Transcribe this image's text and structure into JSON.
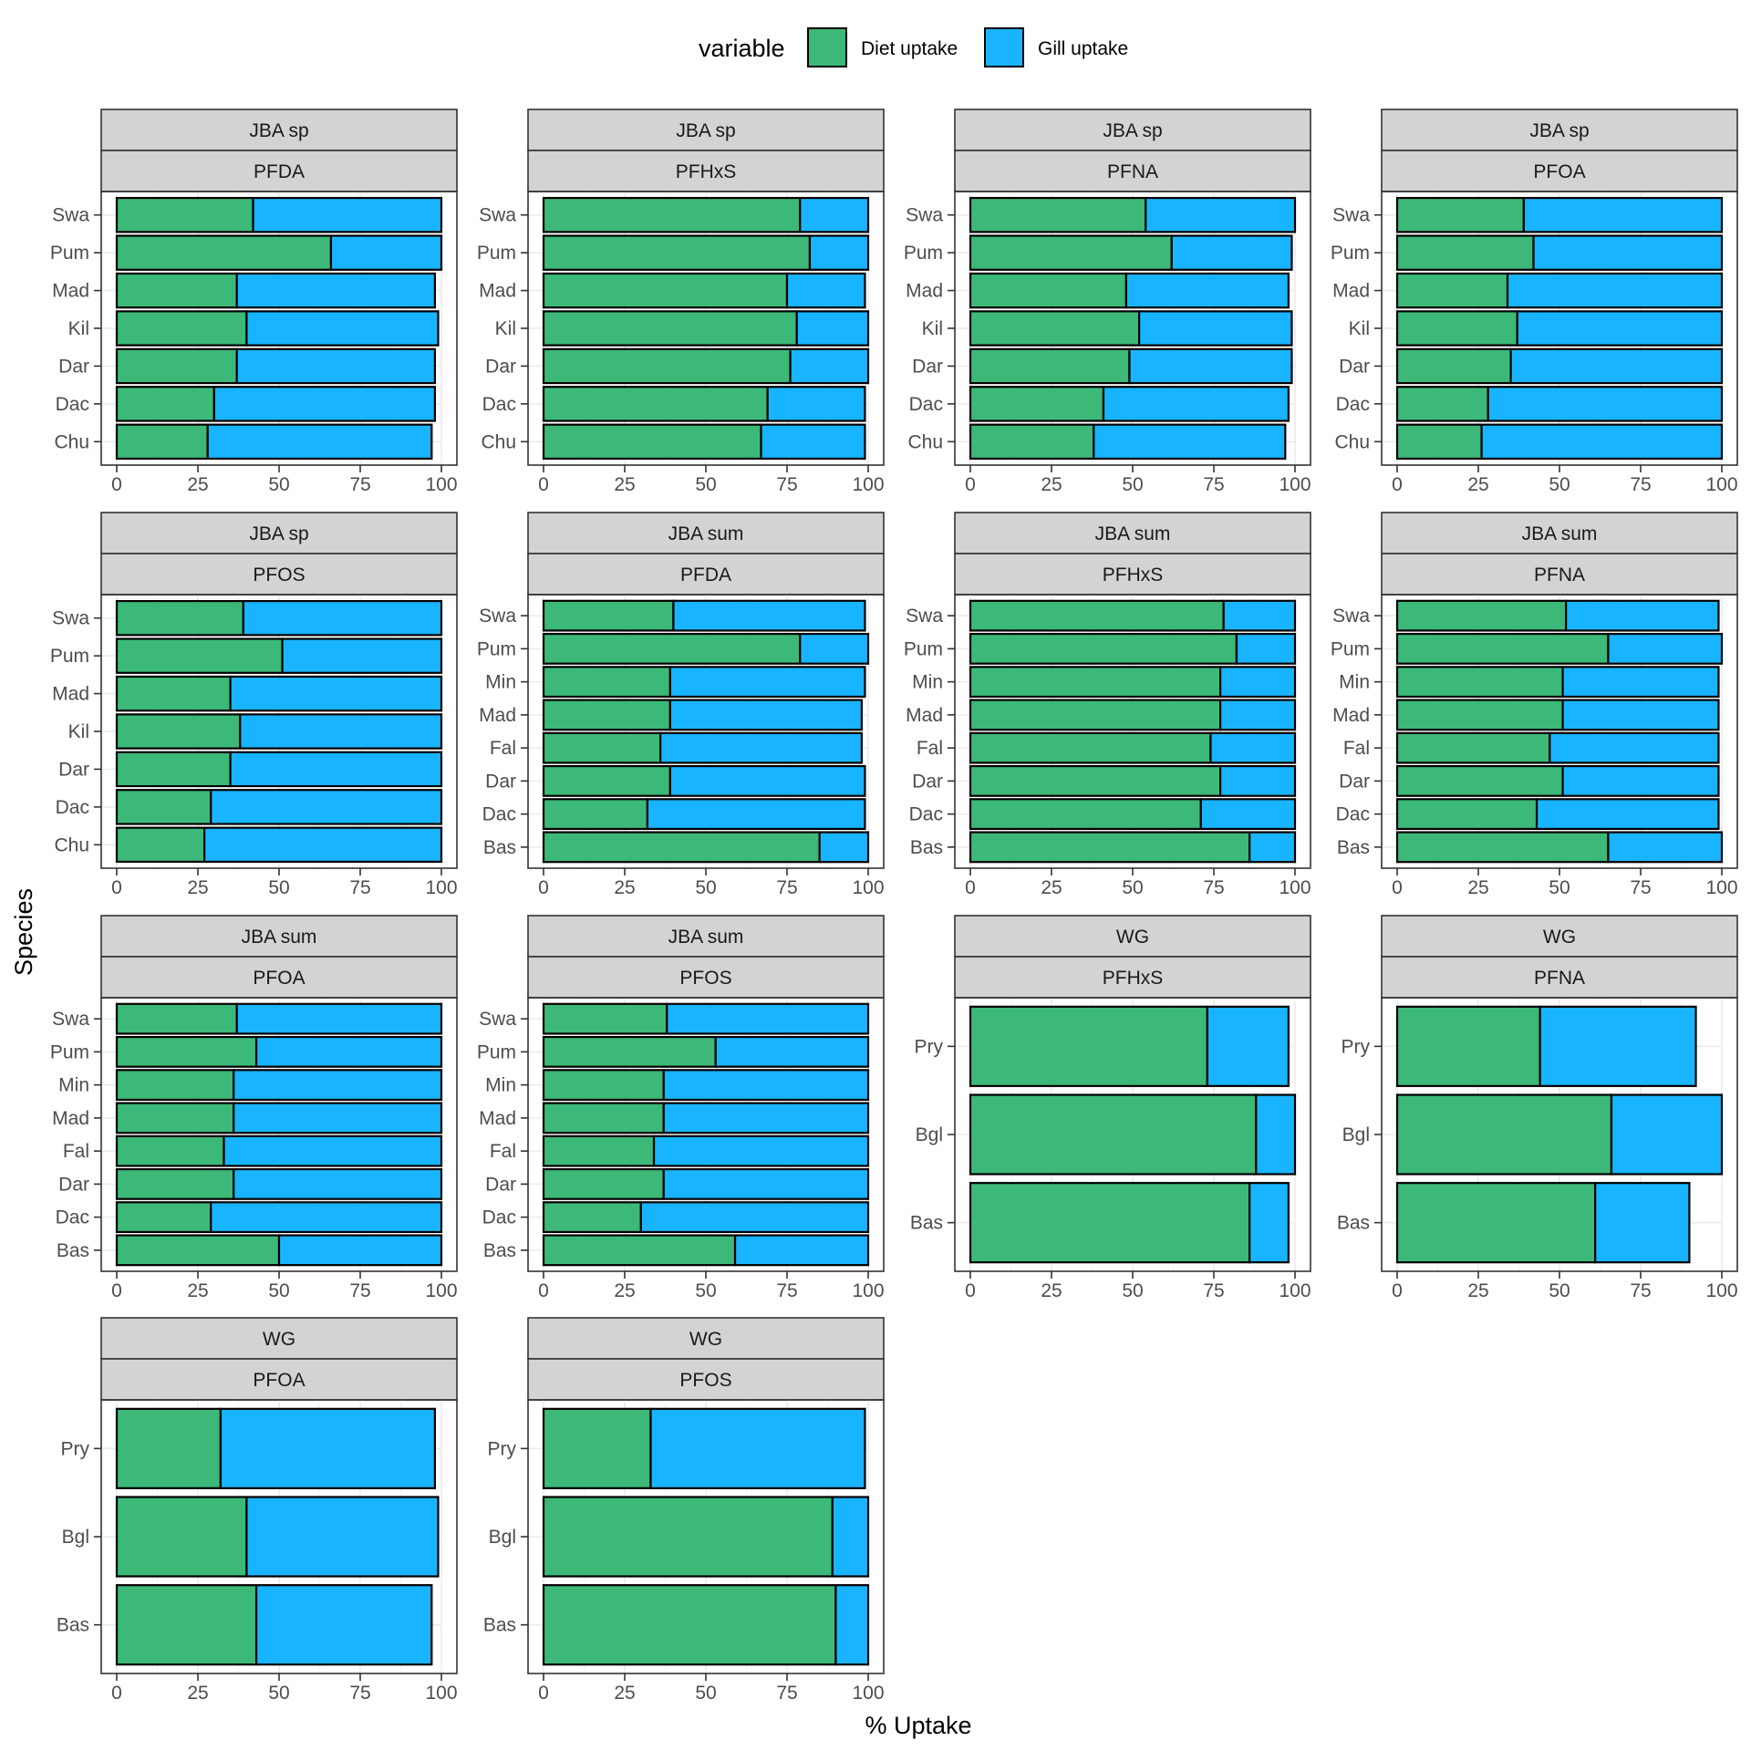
{
  "chart_data": {
    "type": "bar",
    "orientation": "horizontal",
    "stacked": true,
    "facet_layout": "4 columns, strips: method / compound",
    "xlabel": "% Uptake",
    "ylabel": "Species",
    "xlim": [
      0,
      100
    ],
    "x_ticks": [
      "0",
      "25",
      "50",
      "75",
      "100"
    ],
    "grid": true,
    "legend": {
      "title": "variable",
      "placement": "top",
      "entries": [
        {
          "name": "Diet uptake",
          "color": "#3CB878"
        },
        {
          "name": "Gill uptake",
          "color": "#19B4FF"
        }
      ]
    },
    "series_names": [
      "Diet uptake",
      "Gill uptake"
    ],
    "panels": [
      {
        "strip_top": "JBA sp",
        "strip_bottom": "PFDA",
        "categories": [
          "Swa",
          "Pum",
          "Mad",
          "Kil",
          "Dar",
          "Dac",
          "Chu"
        ],
        "diet": [
          42,
          66,
          37,
          40,
          37,
          30,
          28
        ],
        "gill": [
          58,
          34,
          61,
          59,
          61,
          68,
          69
        ]
      },
      {
        "strip_top": "JBA sp",
        "strip_bottom": "PFHxS",
        "categories": [
          "Swa",
          "Pum",
          "Mad",
          "Kil",
          "Dar",
          "Dac",
          "Chu"
        ],
        "diet": [
          79,
          82,
          75,
          78,
          76,
          69,
          67
        ],
        "gill": [
          21,
          18,
          24,
          22,
          24,
          30,
          32
        ]
      },
      {
        "strip_top": "JBA sp",
        "strip_bottom": "PFNA",
        "categories": [
          "Swa",
          "Pum",
          "Mad",
          "Kil",
          "Dar",
          "Dac",
          "Chu"
        ],
        "diet": [
          54,
          62,
          48,
          52,
          49,
          41,
          38
        ],
        "gill": [
          46,
          37,
          50,
          47,
          50,
          57,
          59
        ]
      },
      {
        "strip_top": "JBA sp",
        "strip_bottom": "PFOA",
        "categories": [
          "Swa",
          "Pum",
          "Mad",
          "Kil",
          "Dar",
          "Dac",
          "Chu"
        ],
        "diet": [
          39,
          42,
          34,
          37,
          35,
          28,
          26
        ],
        "gill": [
          61,
          58,
          66,
          63,
          65,
          72,
          74
        ]
      },
      {
        "strip_top": "JBA sp",
        "strip_bottom": "PFOS",
        "categories": [
          "Swa",
          "Pum",
          "Mad",
          "Kil",
          "Dar",
          "Dac",
          "Chu"
        ],
        "diet": [
          39,
          51,
          35,
          38,
          35,
          29,
          27
        ],
        "gill": [
          61,
          49,
          65,
          62,
          65,
          71,
          73
        ]
      },
      {
        "strip_top": "JBA sum",
        "strip_bottom": "PFDA",
        "categories": [
          "Swa",
          "Pum",
          "Min",
          "Mad",
          "Fal",
          "Dar",
          "Dac",
          "Bas"
        ],
        "diet": [
          40,
          79,
          39,
          39,
          36,
          39,
          32,
          85
        ],
        "gill": [
          59,
          21,
          60,
          59,
          62,
          60,
          67,
          15
        ]
      },
      {
        "strip_top": "JBA sum",
        "strip_bottom": "PFHxS",
        "categories": [
          "Swa",
          "Pum",
          "Min",
          "Mad",
          "Fal",
          "Dar",
          "Dac",
          "Bas"
        ],
        "diet": [
          78,
          82,
          77,
          77,
          74,
          77,
          71,
          86
        ],
        "gill": [
          22,
          18,
          23,
          23,
          26,
          23,
          29,
          14
        ]
      },
      {
        "strip_top": "JBA sum",
        "strip_bottom": "PFNA",
        "categories": [
          "Swa",
          "Pum",
          "Min",
          "Mad",
          "Fal",
          "Dar",
          "Dac",
          "Bas"
        ],
        "diet": [
          52,
          65,
          51,
          51,
          47,
          51,
          43,
          65
        ],
        "gill": [
          47,
          35,
          48,
          48,
          52,
          48,
          56,
          35
        ]
      },
      {
        "strip_top": "JBA sum",
        "strip_bottom": "PFOA",
        "categories": [
          "Swa",
          "Pum",
          "Min",
          "Mad",
          "Fal",
          "Dar",
          "Dac",
          "Bas"
        ],
        "diet": [
          37,
          43,
          36,
          36,
          33,
          36,
          29,
          50
        ],
        "gill": [
          63,
          57,
          64,
          64,
          67,
          64,
          71,
          50
        ]
      },
      {
        "strip_top": "JBA sum",
        "strip_bottom": "PFOS",
        "categories": [
          "Swa",
          "Pum",
          "Min",
          "Mad",
          "Fal",
          "Dar",
          "Dac",
          "Bas"
        ],
        "diet": [
          38,
          53,
          37,
          37,
          34,
          37,
          30,
          59
        ],
        "gill": [
          62,
          47,
          63,
          63,
          66,
          63,
          70,
          41
        ]
      },
      {
        "strip_top": "WG",
        "strip_bottom": "PFHxS",
        "categories": [
          "Pry",
          "Bgl",
          "Bas"
        ],
        "diet": [
          73,
          88,
          86
        ],
        "gill": [
          25,
          12,
          12
        ]
      },
      {
        "strip_top": "WG",
        "strip_bottom": "PFNA",
        "categories": [
          "Pry",
          "Bgl",
          "Bas"
        ],
        "diet": [
          44,
          66,
          61
        ],
        "gill": [
          48,
          34,
          29
        ]
      },
      {
        "strip_top": "WG",
        "strip_bottom": "PFOA",
        "categories": [
          "Pry",
          "Bgl",
          "Bas"
        ],
        "diet": [
          32,
          40,
          43
        ],
        "gill": [
          66,
          59,
          54
        ]
      },
      {
        "strip_top": "WG",
        "strip_bottom": "PFOS",
        "categories": [
          "Pry",
          "Bgl",
          "Bas"
        ],
        "diet": [
          33,
          89,
          90
        ],
        "gill": [
          66,
          11,
          10
        ]
      }
    ]
  }
}
